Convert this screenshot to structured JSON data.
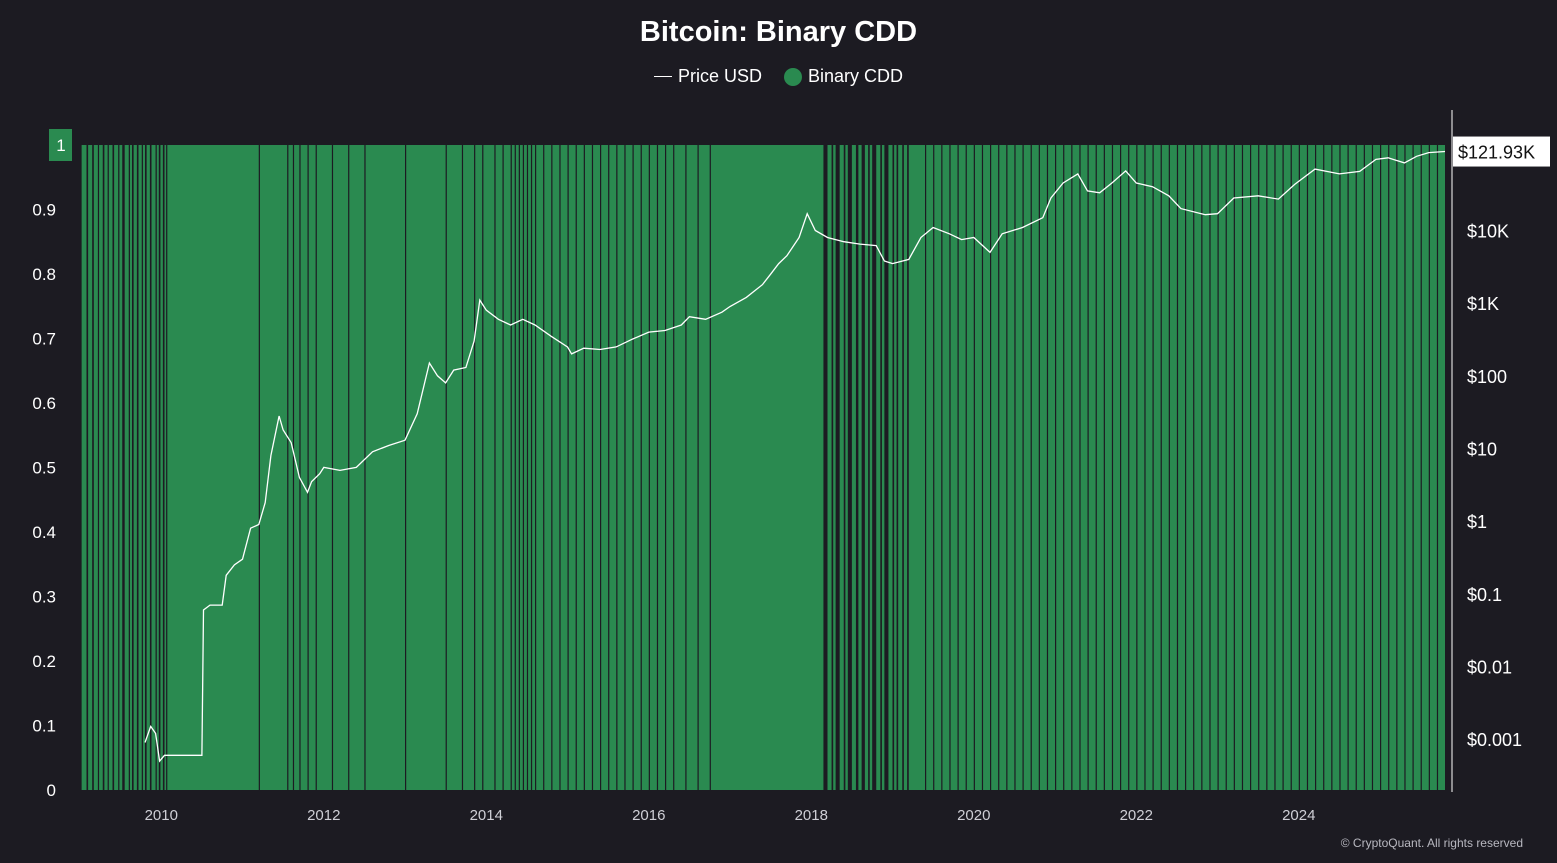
{
  "chart_data": {
    "type": "bar",
    "title": "Bitcoin: Binary CDD",
    "legend": {
      "placement": "top-center",
      "entries": [
        {
          "name": "Price USD",
          "symbol": "line",
          "color": "#ffffff"
        },
        {
          "name": "Binary CDD",
          "symbol": "dot",
          "color": "#2a8a50"
        }
      ]
    },
    "x_axis": {
      "start": 2009.0,
      "end": 2025.8,
      "ticks": [
        "2010",
        "2012",
        "2014",
        "2016",
        "2018",
        "2020",
        "2022",
        "2024"
      ],
      "tick_values": [
        2010,
        2012,
        2014,
        2016,
        2018,
        2020,
        2022,
        2024
      ]
    },
    "y_left": {
      "min": 0,
      "max": 1,
      "ticks": [
        "0",
        "0.1",
        "0.2",
        "0.3",
        "0.4",
        "0.5",
        "0.6",
        "0.7",
        "0.8",
        "0.9",
        "1"
      ],
      "tick_values": [
        0,
        0.1,
        0.2,
        0.3,
        0.4,
        0.5,
        0.6,
        0.7,
        0.8,
        0.9,
        1
      ],
      "highlight_label": "1"
    },
    "y_right": {
      "scale": "log",
      "min_price": 0.0002,
      "max_price": 150000,
      "ticks": [
        "$0.001",
        "$0.01",
        "$0.1",
        "$1",
        "$10",
        "$100",
        "$1K",
        "$10K"
      ],
      "tick_values": [
        0.001,
        0.01,
        0.1,
        1,
        10,
        100,
        1000,
        10000
      ],
      "current_price_label": "$121.93K",
      "current_price": 121930
    },
    "binary_cdd_zero_periods": [
      [
        2009.0,
        2009.02
      ],
      [
        2009.08,
        2009.1
      ],
      [
        2009.15,
        2009.17
      ],
      [
        2009.22,
        2009.23
      ],
      [
        2009.28,
        2009.3
      ],
      [
        2009.34,
        2009.35
      ],
      [
        2009.4,
        2009.42
      ],
      [
        2009.47,
        2009.48
      ],
      [
        2009.52,
        2009.55
      ],
      [
        2009.6,
        2009.61
      ],
      [
        2009.64,
        2009.66
      ],
      [
        2009.7,
        2009.72
      ],
      [
        2009.76,
        2009.77
      ],
      [
        2009.8,
        2009.82
      ],
      [
        2009.86,
        2009.88
      ],
      [
        2009.93,
        2009.94
      ],
      [
        2009.97,
        2009.99
      ],
      [
        2010.02,
        2010.04
      ],
      [
        2010.06,
        2010.07
      ],
      [
        2011.2,
        2011.21
      ],
      [
        2011.55,
        2011.56
      ],
      [
        2011.62,
        2011.63
      ],
      [
        2011.7,
        2011.71
      ],
      [
        2011.8,
        2011.81
      ],
      [
        2011.9,
        2011.91
      ],
      [
        2012.1,
        2012.11
      ],
      [
        2012.3,
        2012.31
      ],
      [
        2012.5,
        2012.51
      ],
      [
        2013.0,
        2013.01
      ],
      [
        2013.5,
        2013.51
      ],
      [
        2013.7,
        2013.71
      ],
      [
        2013.85,
        2013.86
      ],
      [
        2013.95,
        2013.96
      ],
      [
        2014.1,
        2014.11
      ],
      [
        2014.2,
        2014.21
      ],
      [
        2014.3,
        2014.31
      ],
      [
        2014.35,
        2014.36
      ],
      [
        2014.4,
        2014.41
      ],
      [
        2014.45,
        2014.46
      ],
      [
        2014.5,
        2014.51
      ],
      [
        2014.55,
        2014.56
      ],
      [
        2014.6,
        2014.61
      ],
      [
        2014.7,
        2014.71
      ],
      [
        2014.8,
        2014.81
      ],
      [
        2014.9,
        2014.91
      ],
      [
        2015.0,
        2015.01
      ],
      [
        2015.1,
        2015.11
      ],
      [
        2015.2,
        2015.21
      ],
      [
        2015.3,
        2015.31
      ],
      [
        2015.4,
        2015.41
      ],
      [
        2015.5,
        2015.51
      ],
      [
        2015.6,
        2015.61
      ],
      [
        2015.7,
        2015.71
      ],
      [
        2015.8,
        2015.81
      ],
      [
        2015.9,
        2015.91
      ],
      [
        2016.0,
        2016.01
      ],
      [
        2016.1,
        2016.11
      ],
      [
        2016.2,
        2016.21
      ],
      [
        2016.3,
        2016.31
      ],
      [
        2016.45,
        2016.46
      ],
      [
        2016.6,
        2016.61
      ],
      [
        2016.75,
        2016.76
      ],
      [
        2018.15,
        2018.2
      ],
      [
        2018.25,
        2018.27
      ],
      [
        2018.3,
        2018.35
      ],
      [
        2018.4,
        2018.42
      ],
      [
        2018.45,
        2018.5
      ],
      [
        2018.55,
        2018.58
      ],
      [
        2018.62,
        2018.66
      ],
      [
        2018.7,
        2018.72
      ],
      [
        2018.75,
        2018.8
      ],
      [
        2018.85,
        2018.87
      ],
      [
        2018.9,
        2018.95
      ],
      [
        2019.0,
        2019.02
      ],
      [
        2019.05,
        2019.07
      ],
      [
        2019.12,
        2019.14
      ],
      [
        2019.18,
        2019.2
      ],
      [
        2019.4,
        2019.41
      ],
      [
        2019.5,
        2019.51
      ],
      [
        2019.6,
        2019.61
      ],
      [
        2019.7,
        2019.71
      ],
      [
        2019.8,
        2019.81
      ],
      [
        2019.9,
        2019.91
      ],
      [
        2020.0,
        2020.01
      ],
      [
        2020.1,
        2020.11
      ],
      [
        2020.2,
        2020.21
      ],
      [
        2020.3,
        2020.31
      ],
      [
        2020.4,
        2020.41
      ],
      [
        2020.5,
        2020.51
      ],
      [
        2020.6,
        2020.61
      ],
      [
        2020.7,
        2020.71
      ],
      [
        2020.8,
        2020.81
      ],
      [
        2020.9,
        2020.91
      ],
      [
        2021.0,
        2021.01
      ],
      [
        2021.1,
        2021.11
      ],
      [
        2021.2,
        2021.21
      ],
      [
        2021.3,
        2021.31
      ],
      [
        2021.4,
        2021.41
      ],
      [
        2021.5,
        2021.51
      ],
      [
        2021.6,
        2021.61
      ],
      [
        2021.7,
        2021.71
      ],
      [
        2021.8,
        2021.81
      ],
      [
        2021.9,
        2021.91
      ],
      [
        2022.0,
        2022.01
      ],
      [
        2022.1,
        2022.11
      ],
      [
        2022.2,
        2022.21
      ],
      [
        2022.3,
        2022.31
      ],
      [
        2022.4,
        2022.41
      ],
      [
        2022.5,
        2022.51
      ],
      [
        2022.6,
        2022.61
      ],
      [
        2022.7,
        2022.71
      ],
      [
        2022.8,
        2022.81
      ],
      [
        2022.9,
        2022.91
      ],
      [
        2023.0,
        2023.01
      ],
      [
        2023.1,
        2023.11
      ],
      [
        2023.2,
        2023.21
      ],
      [
        2023.3,
        2023.31
      ],
      [
        2023.4,
        2023.41
      ],
      [
        2023.5,
        2023.51
      ],
      [
        2023.6,
        2023.61
      ],
      [
        2023.7,
        2023.71
      ],
      [
        2023.8,
        2023.81
      ],
      [
        2023.9,
        2023.91
      ],
      [
        2024.0,
        2024.01
      ],
      [
        2024.1,
        2024.11
      ],
      [
        2024.2,
        2024.21
      ],
      [
        2024.3,
        2024.31
      ],
      [
        2024.4,
        2024.41
      ],
      [
        2024.5,
        2024.51
      ],
      [
        2024.6,
        2024.61
      ],
      [
        2024.7,
        2024.71
      ],
      [
        2024.8,
        2024.81
      ],
      [
        2024.9,
        2024.91
      ],
      [
        2025.0,
        2025.01
      ],
      [
        2025.1,
        2025.11
      ],
      [
        2025.2,
        2025.21
      ],
      [
        2025.3,
        2025.31
      ],
      [
        2025.4,
        2025.41
      ],
      [
        2025.5,
        2025.51
      ],
      [
        2025.6,
        2025.61
      ],
      [
        2025.7,
        2025.71
      ]
    ],
    "price_series": [
      [
        2009.8,
        0.0009
      ],
      [
        2009.87,
        0.0015
      ],
      [
        2009.93,
        0.0012
      ],
      [
        2009.98,
        0.0005
      ],
      [
        2010.04,
        0.0006
      ],
      [
        2010.5,
        0.0006
      ],
      [
        2010.52,
        0.06
      ],
      [
        2010.6,
        0.07
      ],
      [
        2010.75,
        0.07
      ],
      [
        2010.8,
        0.18
      ],
      [
        2010.9,
        0.25
      ],
      [
        2011.0,
        0.3
      ],
      [
        2011.1,
        0.8
      ],
      [
        2011.2,
        0.9
      ],
      [
        2011.28,
        1.8
      ],
      [
        2011.35,
        8
      ],
      [
        2011.45,
        28
      ],
      [
        2011.5,
        18
      ],
      [
        2011.6,
        12
      ],
      [
        2011.7,
        4
      ],
      [
        2011.8,
        2.5
      ],
      [
        2011.85,
        3.5
      ],
      [
        2011.95,
        4.5
      ],
      [
        2012.0,
        5.5
      ],
      [
        2012.2,
        5
      ],
      [
        2012.4,
        5.5
      ],
      [
        2012.6,
        9
      ],
      [
        2012.8,
        11
      ],
      [
        2013.0,
        13
      ],
      [
        2013.15,
        30
      ],
      [
        2013.3,
        150
      ],
      [
        2013.4,
        100
      ],
      [
        2013.5,
        80
      ],
      [
        2013.6,
        120
      ],
      [
        2013.75,
        130
      ],
      [
        2013.85,
        300
      ],
      [
        2013.92,
        1100
      ],
      [
        2014.0,
        800
      ],
      [
        2014.15,
        600
      ],
      [
        2014.3,
        500
      ],
      [
        2014.45,
        600
      ],
      [
        2014.6,
        500
      ],
      [
        2014.8,
        350
      ],
      [
        2015.0,
        250
      ],
      [
        2015.05,
        200
      ],
      [
        2015.2,
        240
      ],
      [
        2015.4,
        230
      ],
      [
        2015.6,
        250
      ],
      [
        2015.8,
        320
      ],
      [
        2016.0,
        400
      ],
      [
        2016.2,
        420
      ],
      [
        2016.4,
        500
      ],
      [
        2016.5,
        650
      ],
      [
        2016.7,
        600
      ],
      [
        2016.9,
        750
      ],
      [
        2017.0,
        900
      ],
      [
        2017.2,
        1200
      ],
      [
        2017.4,
        1800
      ],
      [
        2017.5,
        2500
      ],
      [
        2017.6,
        3500
      ],
      [
        2017.7,
        4500
      ],
      [
        2017.85,
        8000
      ],
      [
        2017.95,
        17000
      ],
      [
        2018.05,
        10000
      ],
      [
        2018.2,
        8000
      ],
      [
        2018.4,
        7000
      ],
      [
        2018.6,
        6500
      ],
      [
        2018.8,
        6200
      ],
      [
        2018.9,
        3800
      ],
      [
        2019.0,
        3500
      ],
      [
        2019.2,
        4000
      ],
      [
        2019.35,
        8000
      ],
      [
        2019.5,
        11000
      ],
      [
        2019.7,
        9000
      ],
      [
        2019.85,
        7500
      ],
      [
        2020.0,
        8000
      ],
      [
        2020.2,
        5000
      ],
      [
        2020.35,
        9000
      ],
      [
        2020.6,
        11000
      ],
      [
        2020.85,
        15000
      ],
      [
        2020.95,
        28000
      ],
      [
        2021.1,
        45000
      ],
      [
        2021.28,
        60000
      ],
      [
        2021.4,
        35000
      ],
      [
        2021.55,
        33000
      ],
      [
        2021.7,
        45000
      ],
      [
        2021.87,
        66000
      ],
      [
        2022.0,
        45000
      ],
      [
        2022.2,
        40000
      ],
      [
        2022.4,
        30000
      ],
      [
        2022.55,
        20000
      ],
      [
        2022.85,
        16500
      ],
      [
        2023.0,
        17000
      ],
      [
        2023.2,
        28000
      ],
      [
        2023.5,
        30000
      ],
      [
        2023.75,
        27000
      ],
      [
        2023.95,
        43000
      ],
      [
        2024.2,
        70000
      ],
      [
        2024.5,
        60000
      ],
      [
        2024.75,
        65000
      ],
      [
        2024.95,
        95000
      ],
      [
        2025.1,
        100000
      ],
      [
        2025.3,
        85000
      ],
      [
        2025.45,
        105000
      ],
      [
        2025.6,
        118000
      ],
      [
        2025.8,
        121930
      ]
    ]
  },
  "footer": {
    "copyright": "© CryptoQuant. All rights reserved"
  }
}
